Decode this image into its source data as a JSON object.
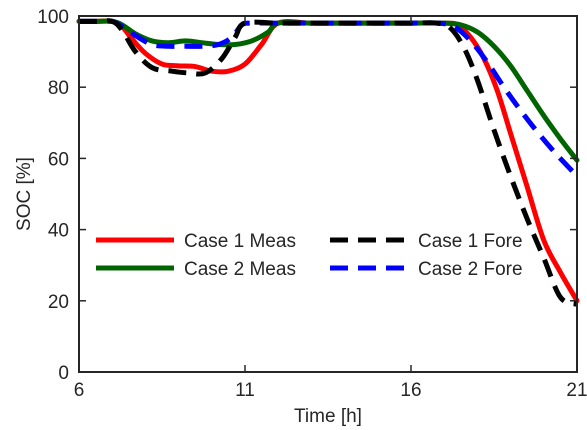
{
  "chart_data": {
    "type": "line",
    "title": "",
    "xlabel": "Time [h]",
    "ylabel": "SOC [%]",
    "xlim": [
      6,
      21
    ],
    "ylim": [
      0,
      100
    ],
    "xticks": [
      6,
      11,
      16,
      21
    ],
    "yticks": [
      0,
      20,
      40,
      60,
      80,
      100
    ],
    "grid": false,
    "legend_position": "lower-left",
    "series": [
      {
        "name": "Case 1 Meas",
        "color": "#ff0000",
        "style": "solid",
        "points": [
          [
            6,
            98.5
          ],
          [
            6.5,
            98.5
          ],
          [
            7,
            98.5
          ],
          [
            7.3,
            97
          ],
          [
            7.6,
            93.5
          ],
          [
            8,
            89.5
          ],
          [
            8.5,
            86.5
          ],
          [
            9,
            86
          ],
          [
            9.5,
            85.8
          ],
          [
            10,
            84.5
          ],
          [
            10.5,
            84.5
          ],
          [
            11,
            86.5
          ],
          [
            11.5,
            92
          ],
          [
            12,
            98
          ],
          [
            13,
            98
          ],
          [
            14,
            98
          ],
          [
            15,
            98
          ],
          [
            16,
            98
          ],
          [
            17,
            98
          ],
          [
            17.4,
            97.5
          ],
          [
            17.8,
            94
          ],
          [
            18.2,
            88
          ],
          [
            18.6,
            79
          ],
          [
            19,
            67
          ],
          [
            19.5,
            52
          ],
          [
            20,
            37
          ],
          [
            20.5,
            28
          ],
          [
            21,
            20
          ]
        ]
      },
      {
        "name": "Case 1 Fore",
        "color": "#000000",
        "style": "dashed",
        "points": [
          [
            6,
            98.5
          ],
          [
            6.5,
            98.5
          ],
          [
            7,
            98.5
          ],
          [
            7.3,
            96
          ],
          [
            7.7,
            90
          ],
          [
            8.2,
            85.5
          ],
          [
            8.8,
            84.5
          ],
          [
            9.3,
            84
          ],
          [
            9.8,
            84
          ],
          [
            10.3,
            88
          ],
          [
            10.7,
            94
          ],
          [
            11,
            98
          ],
          [
            12,
            98
          ],
          [
            13,
            98
          ],
          [
            14,
            98
          ],
          [
            15,
            98
          ],
          [
            16,
            98
          ],
          [
            16.8,
            98
          ],
          [
            17.2,
            96.5
          ],
          [
            17.6,
            91
          ],
          [
            18,
            82
          ],
          [
            18.5,
            68
          ],
          [
            19,
            55
          ],
          [
            19.5,
            43
          ],
          [
            20,
            32
          ],
          [
            20.5,
            21
          ],
          [
            21,
            19
          ]
        ]
      },
      {
        "name": "Case 2 Meas",
        "color": "#006400",
        "style": "solid",
        "points": [
          [
            6,
            98.5
          ],
          [
            6.5,
            98.5
          ],
          [
            7,
            98.5
          ],
          [
            7.3,
            97.5
          ],
          [
            7.7,
            95
          ],
          [
            8.2,
            93
          ],
          [
            8.7,
            92.5
          ],
          [
            9.2,
            93
          ],
          [
            9.7,
            92.5
          ],
          [
            10.2,
            92
          ],
          [
            10.7,
            92
          ],
          [
            11.2,
            93
          ],
          [
            11.7,
            95.5
          ],
          [
            12,
            98
          ],
          [
            13,
            98
          ],
          [
            14,
            98
          ],
          [
            15,
            98
          ],
          [
            16,
            98
          ],
          [
            17,
            98
          ],
          [
            17.5,
            97.5
          ],
          [
            18,
            95.5
          ],
          [
            18.5,
            91.5
          ],
          [
            19,
            86
          ],
          [
            19.5,
            79
          ],
          [
            20,
            72
          ],
          [
            20.5,
            65.5
          ],
          [
            21,
            59.5
          ]
        ]
      },
      {
        "name": "Case 2 Fore",
        "color": "#0000ff",
        "style": "dashed",
        "points": [
          [
            6,
            98.5
          ],
          [
            6.5,
            98.5
          ],
          [
            7,
            98.5
          ],
          [
            7.3,
            97
          ],
          [
            7.7,
            94.5
          ],
          [
            8.2,
            92
          ],
          [
            8.7,
            91.5
          ],
          [
            9.2,
            91.5
          ],
          [
            9.7,
            91.5
          ],
          [
            10.2,
            92
          ],
          [
            10.6,
            94
          ],
          [
            10.9,
            97.5
          ],
          [
            11.1,
            98
          ],
          [
            12,
            98
          ],
          [
            13,
            98
          ],
          [
            14,
            98
          ],
          [
            15,
            98
          ],
          [
            16,
            98
          ],
          [
            16.8,
            98
          ],
          [
            17.3,
            97
          ],
          [
            17.8,
            93
          ],
          [
            18.3,
            87
          ],
          [
            18.8,
            80
          ],
          [
            19.3,
            73.5
          ],
          [
            19.8,
            67.5
          ],
          [
            20.3,
            62
          ],
          [
            20.8,
            57
          ],
          [
            21,
            55
          ]
        ]
      }
    ]
  }
}
